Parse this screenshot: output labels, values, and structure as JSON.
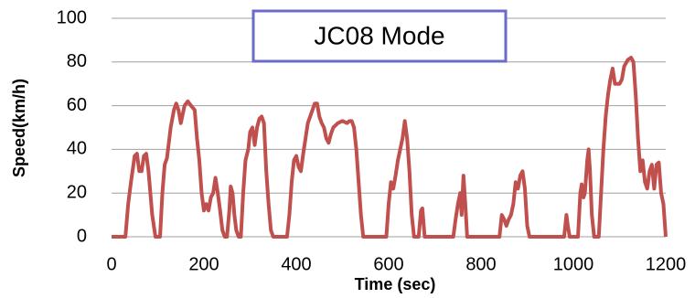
{
  "chart_data": {
    "type": "line",
    "title": "JC08 Mode",
    "x_label": "Time (sec)",
    "y_label": "Speed(km/h)",
    "color": "#c0504d",
    "grid": true,
    "xlim": [
      0,
      1200
    ],
    "xticks": [
      0,
      200,
      400,
      600,
      800,
      1000,
      1200
    ],
    "ylim": [
      0,
      100
    ],
    "yticks": [
      0,
      20,
      40,
      60,
      80,
      100
    ],
    "x": [
      0,
      30,
      36,
      42,
      50,
      55,
      60,
      65,
      70,
      75,
      80,
      88,
      95,
      105,
      110,
      115,
      120,
      128,
      135,
      140,
      145,
      150,
      158,
      165,
      172,
      180,
      185,
      190,
      195,
      200,
      205,
      210,
      215,
      220,
      225,
      230,
      235,
      240,
      245,
      250,
      255,
      258,
      262,
      266,
      270,
      275,
      280,
      285,
      290,
      296,
      300,
      305,
      310,
      315,
      320,
      325,
      330,
      335,
      340,
      345,
      350,
      380,
      385,
      390,
      395,
      400,
      405,
      410,
      415,
      420,
      425,
      430,
      435,
      440,
      445,
      450,
      455,
      460,
      465,
      470,
      475,
      480,
      490,
      500,
      510,
      515,
      520,
      525,
      530,
      535,
      540,
      545,
      595,
      600,
      605,
      610,
      615,
      620,
      625,
      630,
      635,
      640,
      645,
      650,
      655,
      665,
      670,
      673,
      678,
      740,
      745,
      750,
      755,
      758,
      762,
      766,
      770,
      840,
      845,
      850,
      855,
      860,
      865,
      870,
      875,
      880,
      885,
      890,
      895,
      900,
      905,
      980,
      985,
      988,
      992,
      1010,
      1015,
      1018,
      1022,
      1025,
      1030,
      1033,
      1036,
      1040,
      1045,
      1055,
      1060,
      1065,
      1070,
      1075,
      1080,
      1085,
      1090,
      1100,
      1105,
      1110,
      1118,
      1125,
      1130,
      1135,
      1140,
      1145,
      1150,
      1155,
      1160,
      1165,
      1170,
      1175,
      1180,
      1185,
      1190,
      1195,
      1200
    ],
    "values": [
      0,
      0,
      15,
      25,
      37,
      38,
      30,
      30,
      37,
      38,
      30,
      10,
      0,
      0,
      20,
      33,
      36,
      50,
      58,
      61,
      58,
      52,
      60,
      62,
      60,
      58,
      45,
      35,
      20,
      12,
      15,
      12,
      18,
      20,
      27,
      20,
      12,
      3,
      0,
      0,
      12,
      23,
      20,
      10,
      3,
      0,
      0,
      20,
      35,
      40,
      48,
      50,
      42,
      50,
      54,
      55,
      52,
      30,
      15,
      3,
      0,
      0,
      10,
      25,
      35,
      37,
      32,
      30,
      38,
      45,
      52,
      55,
      58,
      61,
      61,
      55,
      52,
      50,
      45,
      43,
      47,
      50,
      52,
      53,
      52,
      53,
      53,
      50,
      40,
      25,
      10,
      0,
      0,
      15,
      25,
      22,
      28,
      35,
      40,
      45,
      53,
      45,
      30,
      10,
      0,
      0,
      12,
      13,
      0,
      0,
      8,
      15,
      20,
      10,
      28,
      15,
      0,
      0,
      10,
      8,
      5,
      8,
      10,
      15,
      25,
      22,
      28,
      30,
      22,
      5,
      0,
      0,
      10,
      5,
      0,
      0,
      20,
      24,
      18,
      20,
      35,
      40,
      30,
      10,
      0,
      0,
      20,
      40,
      55,
      65,
      72,
      77,
      70,
      70,
      72,
      78,
      81,
      82,
      80,
      65,
      45,
      30,
      35,
      25,
      22,
      30,
      33,
      22,
      33,
      34,
      20,
      15,
      0
    ]
  }
}
